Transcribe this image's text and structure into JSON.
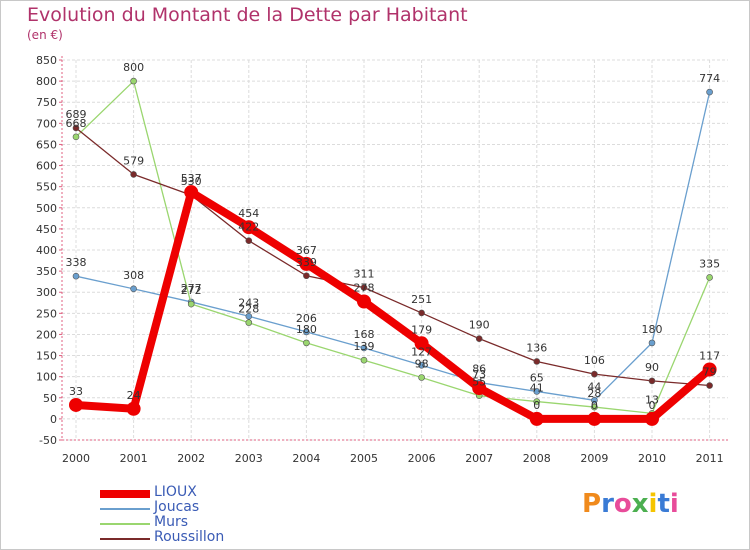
{
  "header": {
    "title": "Evolution du Montant de la Dette par Habitant",
    "unit": "(en €)"
  },
  "logo": {
    "text": "Proxiti",
    "colors": [
      "#f08a1c",
      "#3a7bd5",
      "#e84c9a",
      "#4caf50",
      "#f5c400",
      "#3a7bd5",
      "#e84c9a"
    ]
  },
  "chart_data": {
    "type": "line",
    "title": "Evolution du Montant de la Dette par Habitant",
    "subtitle": "(en €)",
    "xlabel": "",
    "ylabel": "",
    "grid": true,
    "legend_position": "bottom-left",
    "x": [
      "2000",
      "2001",
      "2002",
      "2003",
      "2004",
      "2005",
      "2006",
      "2007",
      "2008",
      "2009",
      "2010",
      "2011"
    ],
    "ylim": [
      -50,
      850
    ],
    "yticks": [
      -50,
      0,
      50,
      100,
      150,
      200,
      250,
      300,
      350,
      400,
      450,
      500,
      550,
      600,
      650,
      700,
      750,
      800,
      850
    ],
    "series": [
      {
        "name": "LIOUX",
        "color": "#ee0000",
        "width": 8,
        "marker": 7,
        "values": [
          33,
          24,
          537,
          454,
          367,
          278,
          179,
          73,
          0,
          0,
          0,
          117
        ]
      },
      {
        "name": "Joucas",
        "color": "#6a9fce",
        "width": 1.3,
        "marker": 3,
        "values": [
          338,
          308,
          277,
          243,
          206,
          168,
          127,
          86,
          65,
          44,
          180,
          774
        ]
      },
      {
        "name": "Murs",
        "color": "#9ad66f",
        "width": 1.3,
        "marker": 3,
        "values": [
          668,
          800,
          272,
          228,
          180,
          139,
          98,
          55,
          41,
          28,
          13,
          335
        ]
      },
      {
        "name": "Roussillon",
        "color": "#7a2a2a",
        "width": 1.3,
        "marker": 3,
        "values": [
          689,
          579,
          530,
          422,
          339,
          311,
          251,
          190,
          136,
          106,
          90,
          79
        ]
      }
    ],
    "point_labels": [
      [
        {
          "x": "2000",
          "text": "33"
        },
        {
          "x": "2001",
          "text": "24"
        },
        {
          "x": "2002",
          "text": "537"
        },
        {
          "x": "2003",
          "text": "454"
        },
        {
          "x": "2004",
          "text": "367"
        },
        {
          "x": "2005",
          "text": "278"
        },
        {
          "x": "2006",
          "text": "179"
        },
        {
          "x": "2007",
          "text": "73"
        },
        {
          "x": "2008",
          "text": "0"
        },
        {
          "x": "2009",
          "text": "0"
        },
        {
          "x": "2010",
          "text": "0"
        },
        {
          "x": "2011",
          "text": "117"
        }
      ],
      [
        {
          "x": "2000",
          "text": "338"
        },
        {
          "x": "2001",
          "text": "308"
        },
        {
          "x": "2002",
          "text": "277"
        },
        {
          "x": "2003",
          "text": "243"
        },
        {
          "x": "2004",
          "text": "206"
        },
        {
          "x": "2005",
          "text": "168"
        },
        {
          "x": "2006",
          "text": "127"
        },
        {
          "x": "2007",
          "text": "86"
        },
        {
          "x": "2008",
          "text": "65"
        },
        {
          "x": "2009",
          "text": "44"
        },
        {
          "x": "2010",
          "text": "180"
        },
        {
          "x": "2011",
          "text": "774"
        }
      ],
      [
        {
          "x": "2000",
          "text": "668"
        },
        {
          "x": "2001",
          "text": "800"
        },
        {
          "x": "2002",
          "text": "272"
        },
        {
          "x": "2003",
          "text": "228"
        },
        {
          "x": "2004",
          "text": "180"
        },
        {
          "x": "2005",
          "text": "139"
        },
        {
          "x": "2006",
          "text": "98"
        },
        {
          "x": "2007",
          "text": "55"
        },
        {
          "x": "2008",
          "text": "41"
        },
        {
          "x": "2009",
          "text": "28"
        },
        {
          "x": "2010",
          "text": "13"
        },
        {
          "x": "2011",
          "text": "335"
        }
      ],
      [
        {
          "x": "2000",
          "text": "689"
        },
        {
          "x": "2001",
          "text": "579"
        },
        {
          "x": "2002",
          "text": "530"
        },
        {
          "x": "2003",
          "text": "422"
        },
        {
          "x": "2004",
          "text": "339"
        },
        {
          "x": "2005",
          "text": "311"
        },
        {
          "x": "2006",
          "text": "251"
        },
        {
          "x": "2007",
          "text": "190"
        },
        {
          "x": "2008",
          "text": "136"
        },
        {
          "x": "2009",
          "text": "106"
        },
        {
          "x": "2010",
          "text": "90"
        },
        {
          "x": "2011",
          "text": "79"
        }
      ]
    ]
  }
}
